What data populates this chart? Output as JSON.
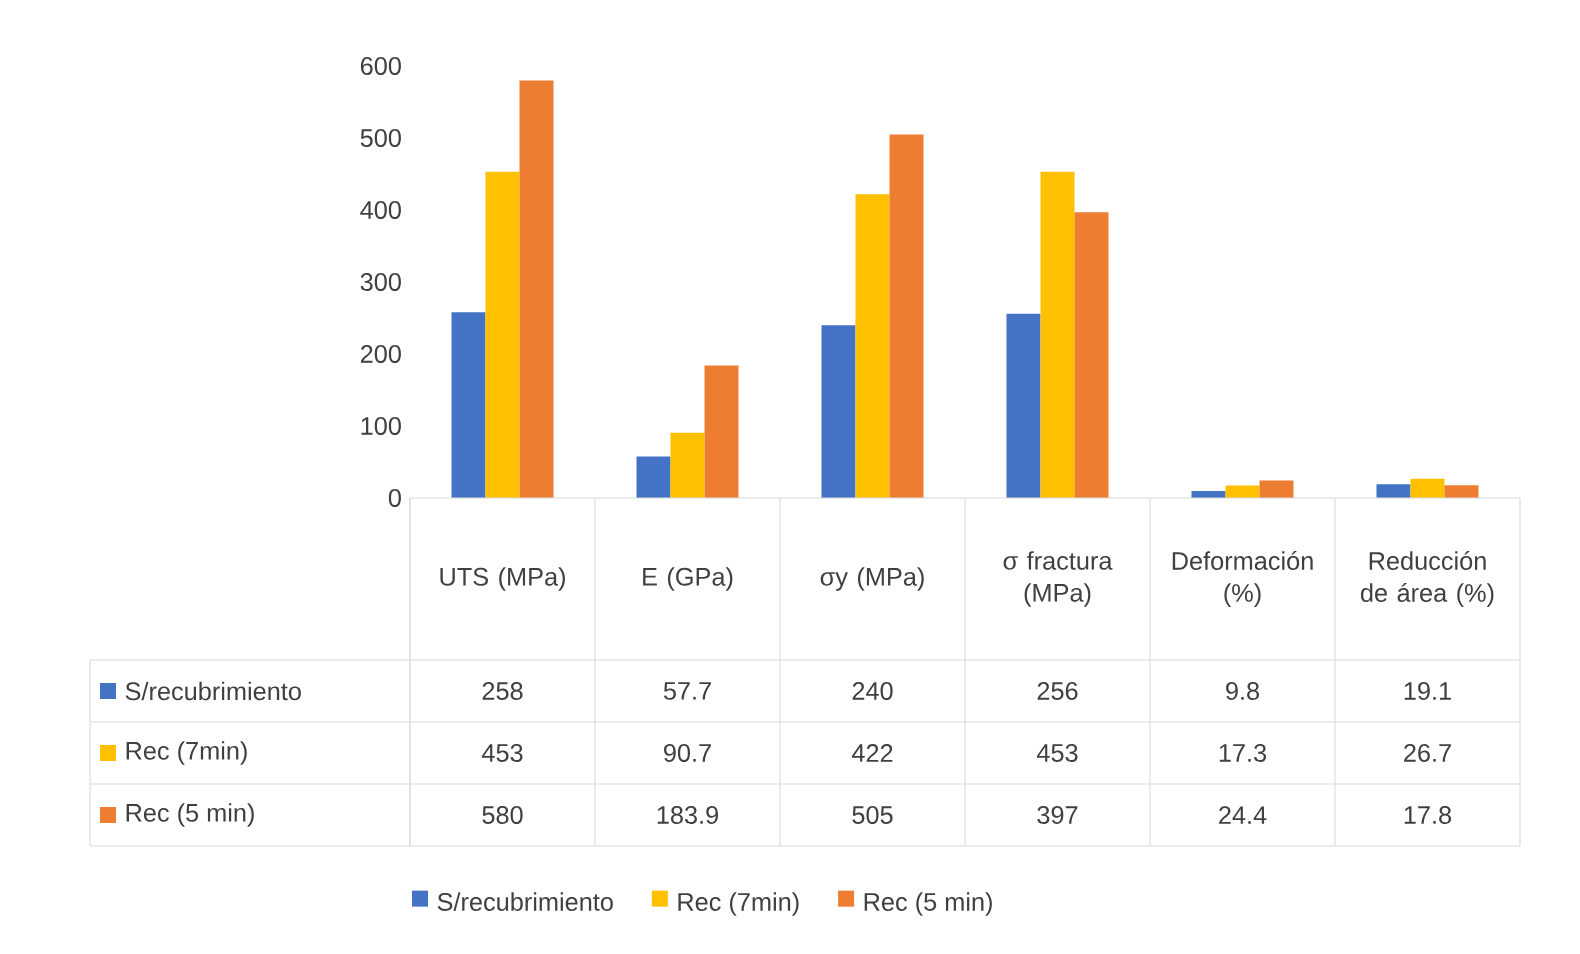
{
  "chart_data": {
    "type": "bar",
    "categories": [
      "UTS (MPa)",
      "E (GPa)",
      "σy (MPa)",
      "σ fractura (MPa)",
      "Deformación (%)",
      "Reducción de área (%)"
    ],
    "series": [
      {
        "name": "S/recubrimiento",
        "color": "#4472c4",
        "values": [
          258,
          57.7,
          240,
          256,
          9.8,
          19.1
        ]
      },
      {
        "name": "Rec (7min)",
        "color": "#ffc000",
        "values": [
          453,
          90.7,
          422,
          453,
          17.3,
          26.7
        ]
      },
      {
        "name": "Rec (5 min)",
        "color": "#ed7d31",
        "values": [
          580,
          183.9,
          505,
          397,
          24.4,
          17.8
        ]
      }
    ],
    "ylim": [
      0,
      600
    ],
    "yticks": [
      0,
      100,
      200,
      300,
      400,
      500,
      600
    ],
    "data_labels": true,
    "legend": "bottom"
  }
}
